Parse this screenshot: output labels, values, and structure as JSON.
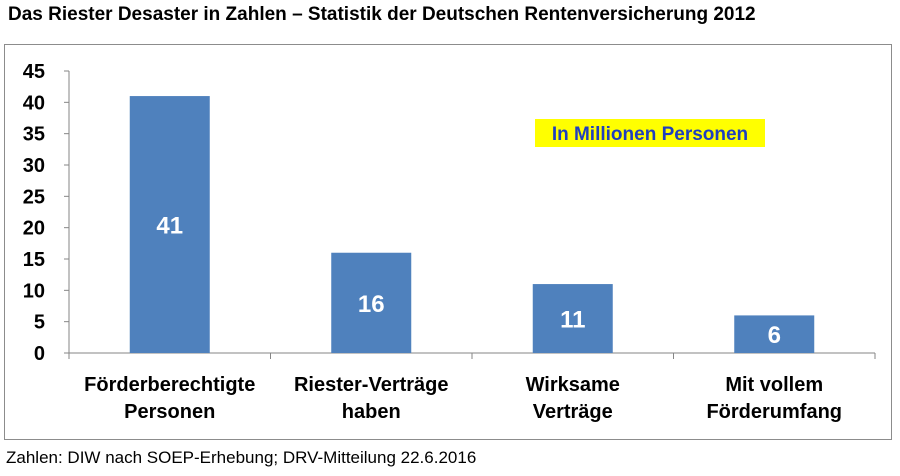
{
  "title": "Das Riester Desaster in Zahlen – Statistik der Deutschen Rentenversicherung 2012",
  "source": "Zahlen: DIW nach SOEP-Erhebung; DRV-Mitteilung 22.6.2016",
  "annotation": "In Millionen Personen",
  "colors": {
    "bar": "#4f81bd",
    "annotation_bg": "#ffff00",
    "annotation_text": "#1f3fbf",
    "value_label": "#ffffff"
  },
  "chart_data": {
    "type": "bar",
    "title": "Das Riester Desaster in Zahlen – Statistik der Deutschen Rentenversicherung 2012",
    "categories": [
      [
        "Förderberechtigte",
        "Personen"
      ],
      [
        "Riester-Verträge",
        "haben"
      ],
      [
        "Wirksame",
        "Verträge"
      ],
      [
        "Mit vollem",
        "Förderumfang"
      ]
    ],
    "values": [
      41,
      16,
      11,
      6
    ],
    "data_labels": [
      "41",
      "16",
      "11",
      "6"
    ],
    "yticks": [
      "0",
      "5",
      "10",
      "15",
      "20",
      "25",
      "30",
      "35",
      "40",
      "45"
    ],
    "ylim": [
      0,
      45
    ],
    "grid": false,
    "legend": "none"
  }
}
